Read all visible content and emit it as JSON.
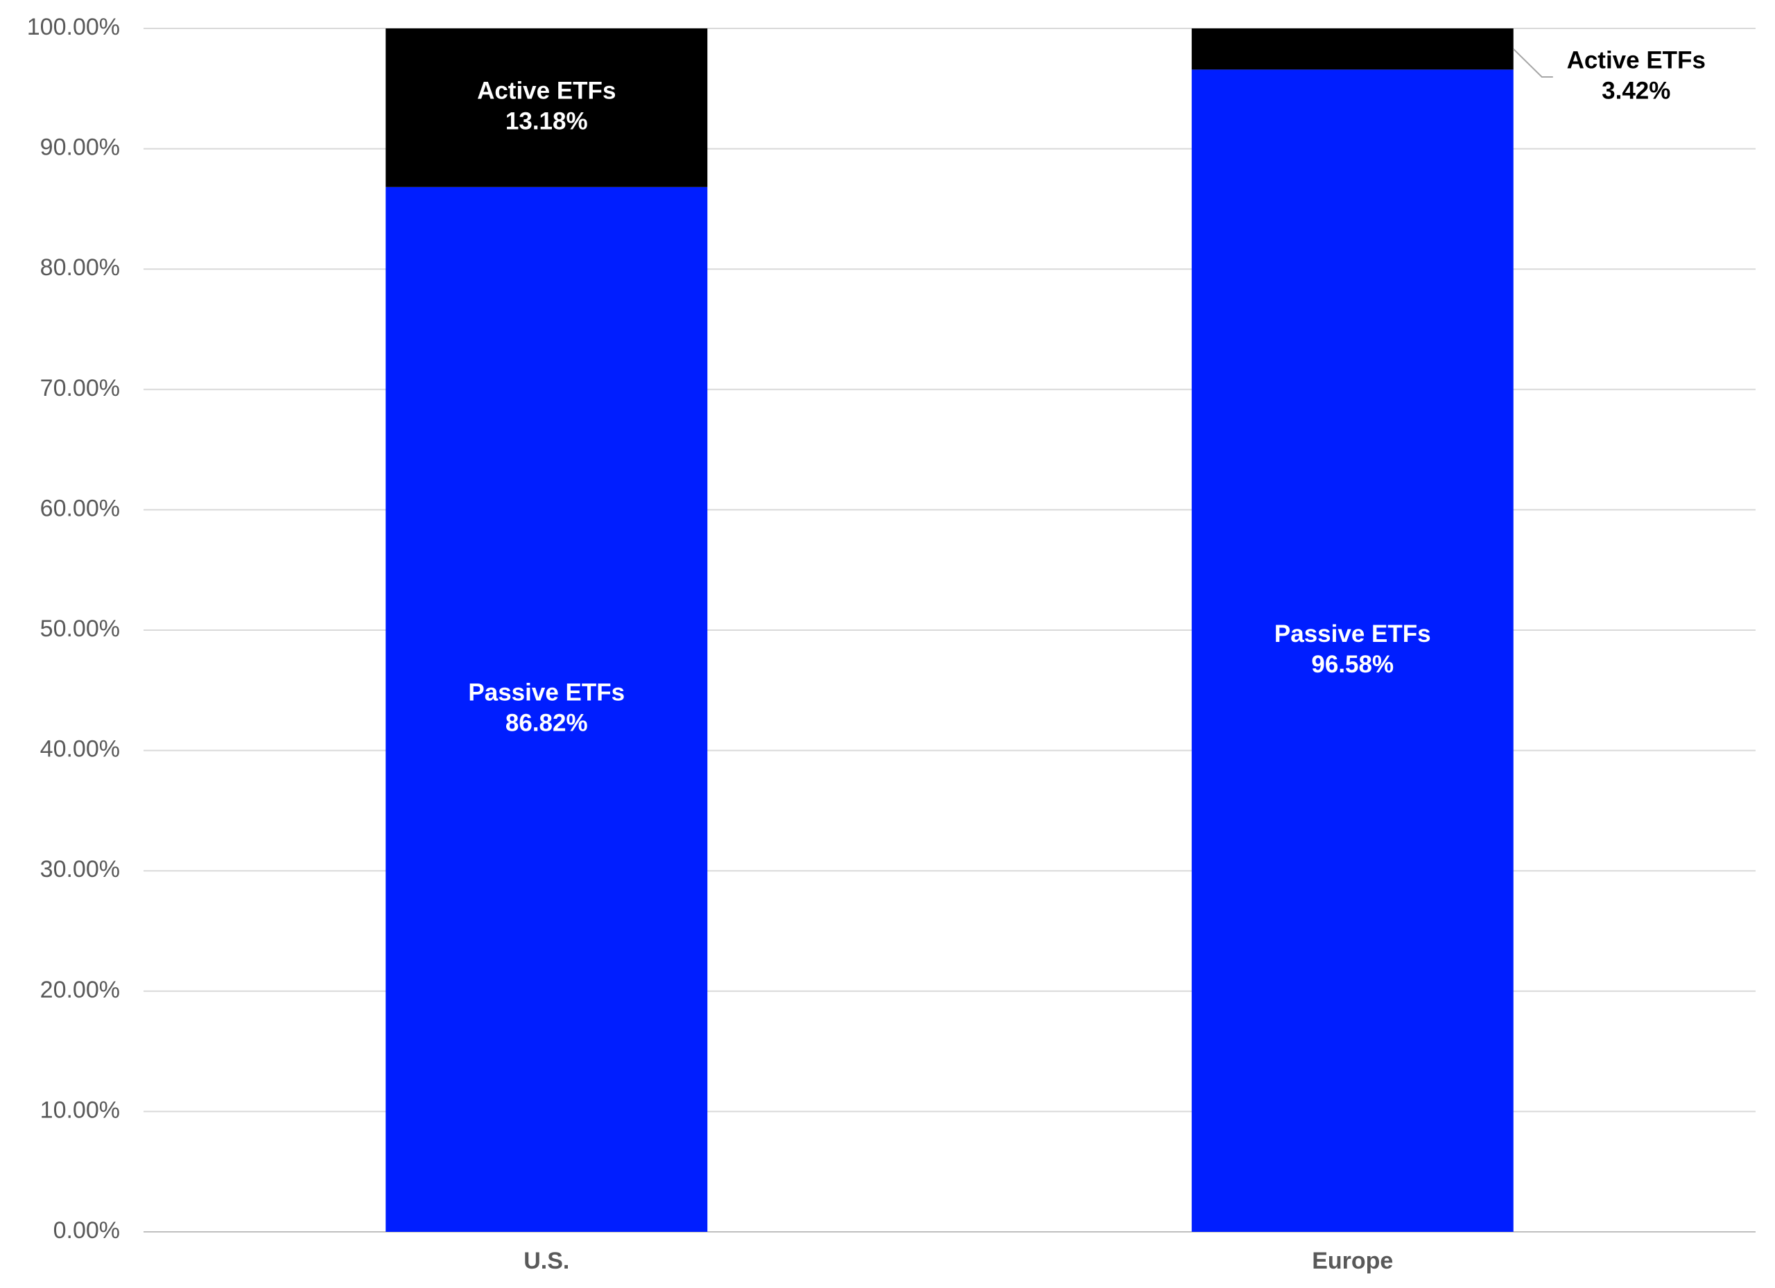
{
  "chart_data": {
    "type": "stacked_bar",
    "categories": [
      "U.S.",
      "Europe"
    ],
    "series": [
      {
        "name": "Passive ETFs",
        "color": "#001eff",
        "values": [
          86.82,
          96.58
        ],
        "value_labels": [
          "86.82%",
          "96.58%"
        ]
      },
      {
        "name": "Active ETFs",
        "color": "#000000",
        "values": [
          13.18,
          3.42
        ],
        "value_labels": [
          "13.18%",
          "3.42%"
        ]
      }
    ],
    "ylim": [
      0,
      100
    ],
    "yticks": [
      {
        "value": 0,
        "label": "0.00%"
      },
      {
        "value": 10,
        "label": "10.00%"
      },
      {
        "value": 20,
        "label": "20.00%"
      },
      {
        "value": 30,
        "label": "30.00%"
      },
      {
        "value": 40,
        "label": "40.00%"
      },
      {
        "value": 50,
        "label": "50.00%"
      },
      {
        "value": 60,
        "label": "60.00%"
      },
      {
        "value": 70,
        "label": "70.00%"
      },
      {
        "value": 80,
        "label": "80.00%"
      },
      {
        "value": 90,
        "label": "90.00%"
      },
      {
        "value": 100,
        "label": "100.00%"
      }
    ],
    "grid": true
  }
}
